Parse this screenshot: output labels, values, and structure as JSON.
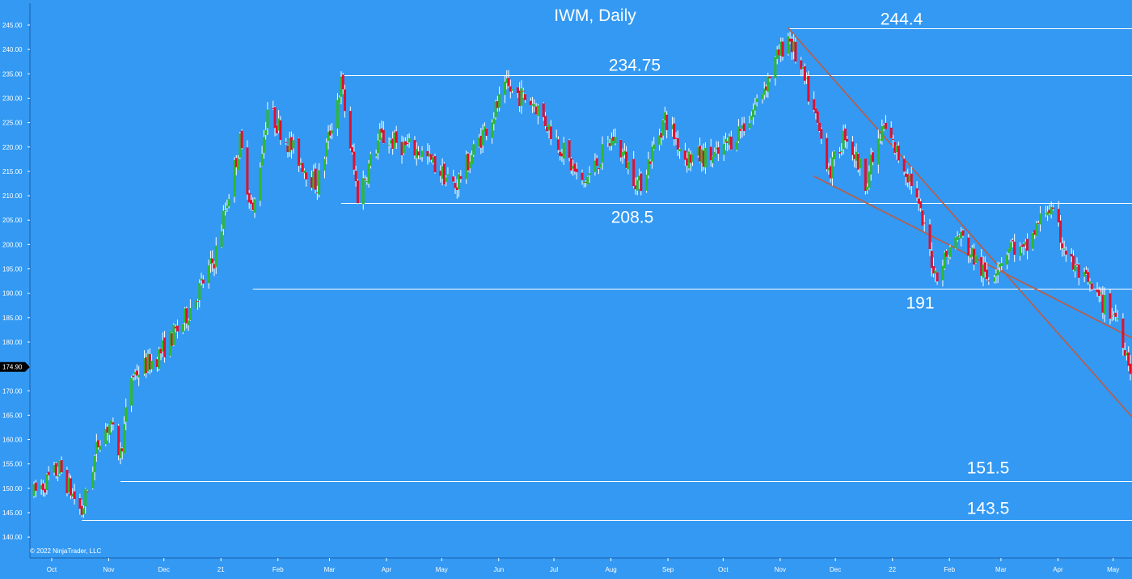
{
  "chart_data": {
    "type": "candlestick",
    "title": "IWM, Daily",
    "copyright": "© 2022 NinjaTrader, LLC",
    "ylim": [
      137,
      247
    ],
    "y_ticks": [
      "245.00",
      "240.00",
      "235.00",
      "230.00",
      "225.00",
      "220.00",
      "215.00",
      "210.00",
      "205.00",
      "200.00",
      "195.00",
      "190.00",
      "185.00",
      "180.00",
      "175.00",
      "170.00",
      "165.00",
      "160.00",
      "155.00",
      "150.00",
      "145.00",
      "140.00"
    ],
    "x_ticks": [
      "Oct",
      "Nov",
      "Dec",
      "21",
      "Feb",
      "Mar",
      "Apr",
      "May",
      "Jun",
      "Jul",
      "Aug",
      "Sep",
      "Oct",
      "Nov",
      "Dec",
      "22",
      "Feb",
      "Mar",
      "Apr",
      "May"
    ],
    "last_price": "174.90",
    "levels": [
      {
        "label": "244.4",
        "value": 244.4
      },
      {
        "label": "234.75",
        "value": 234.75
      },
      {
        "label": "208.5",
        "value": 208.5
      },
      {
        "label": "191",
        "value": 191
      },
      {
        "label": "151.5",
        "value": 151.5
      },
      {
        "label": "143.5",
        "value": 143.5
      }
    ],
    "channel": [
      {
        "from": [
          "2021-11-08",
          244.4
        ],
        "to": [
          "2022-05-13",
          165.0
        ]
      },
      {
        "from": [
          "2021-11-22",
          214.0
        ],
        "to": [
          "2022-05-13",
          181.0
        ]
      }
    ],
    "series_knots": [
      [
        "2020-09-24",
        149
      ],
      [
        "2020-10-08",
        154
      ],
      [
        "2020-10-20",
        145
      ],
      [
        "2020-10-30",
        161
      ],
      [
        "2020-11-04",
        163
      ],
      [
        "2020-11-10",
        157
      ],
      [
        "2020-11-16",
        173
      ],
      [
        "2020-11-30",
        177
      ],
      [
        "2020-12-14",
        184
      ],
      [
        "2020-12-31",
        197
      ],
      [
        "2021-01-14",
        221
      ],
      [
        "2021-01-21",
        206
      ],
      [
        "2021-01-29",
        228
      ],
      [
        "2021-02-09",
        221
      ],
      [
        "2021-02-25",
        212
      ],
      [
        "2021-03-10",
        233
      ],
      [
        "2021-03-19",
        210
      ],
      [
        "2021-03-31",
        222
      ],
      [
        "2021-04-22",
        219
      ],
      [
        "2021-05-11",
        212
      ],
      [
        "2021-06-08",
        232
      ],
      [
        "2021-06-23",
        229
      ],
      [
        "2021-07-09",
        219
      ],
      [
        "2021-07-19",
        212
      ],
      [
        "2021-08-05",
        222
      ],
      [
        "2021-08-19",
        212
      ],
      [
        "2021-09-02",
        226
      ],
      [
        "2021-09-13",
        218
      ],
      [
        "2021-09-30",
        218
      ],
      [
        "2021-10-18",
        226
      ],
      [
        "2021-11-08",
        243
      ],
      [
        "2021-11-18",
        232
      ],
      [
        "2021-12-01",
        215
      ],
      [
        "2021-12-09",
        223
      ],
      [
        "2021-12-20",
        213
      ],
      [
        "2021-12-30",
        224
      ],
      [
        "2022-01-14",
        213
      ],
      [
        "2022-01-27",
        194
      ],
      [
        "2022-02-09",
        202
      ],
      [
        "2022-02-24",
        193
      ],
      [
        "2022-03-09",
        200
      ],
      [
        "2022-03-16",
        198
      ],
      [
        "2022-03-29",
        208
      ],
      [
        "2022-04-11",
        196
      ],
      [
        "2022-04-25",
        189
      ],
      [
        "2022-05-06",
        185
      ],
      [
        "2022-05-13",
        175
      ]
    ]
  },
  "colors": {
    "background": "#3399f3",
    "up": "#2fb82f",
    "down": "#e0102f",
    "wick": "#ffffff",
    "level_line": "#ffffff",
    "channel": "#c05a40"
  }
}
